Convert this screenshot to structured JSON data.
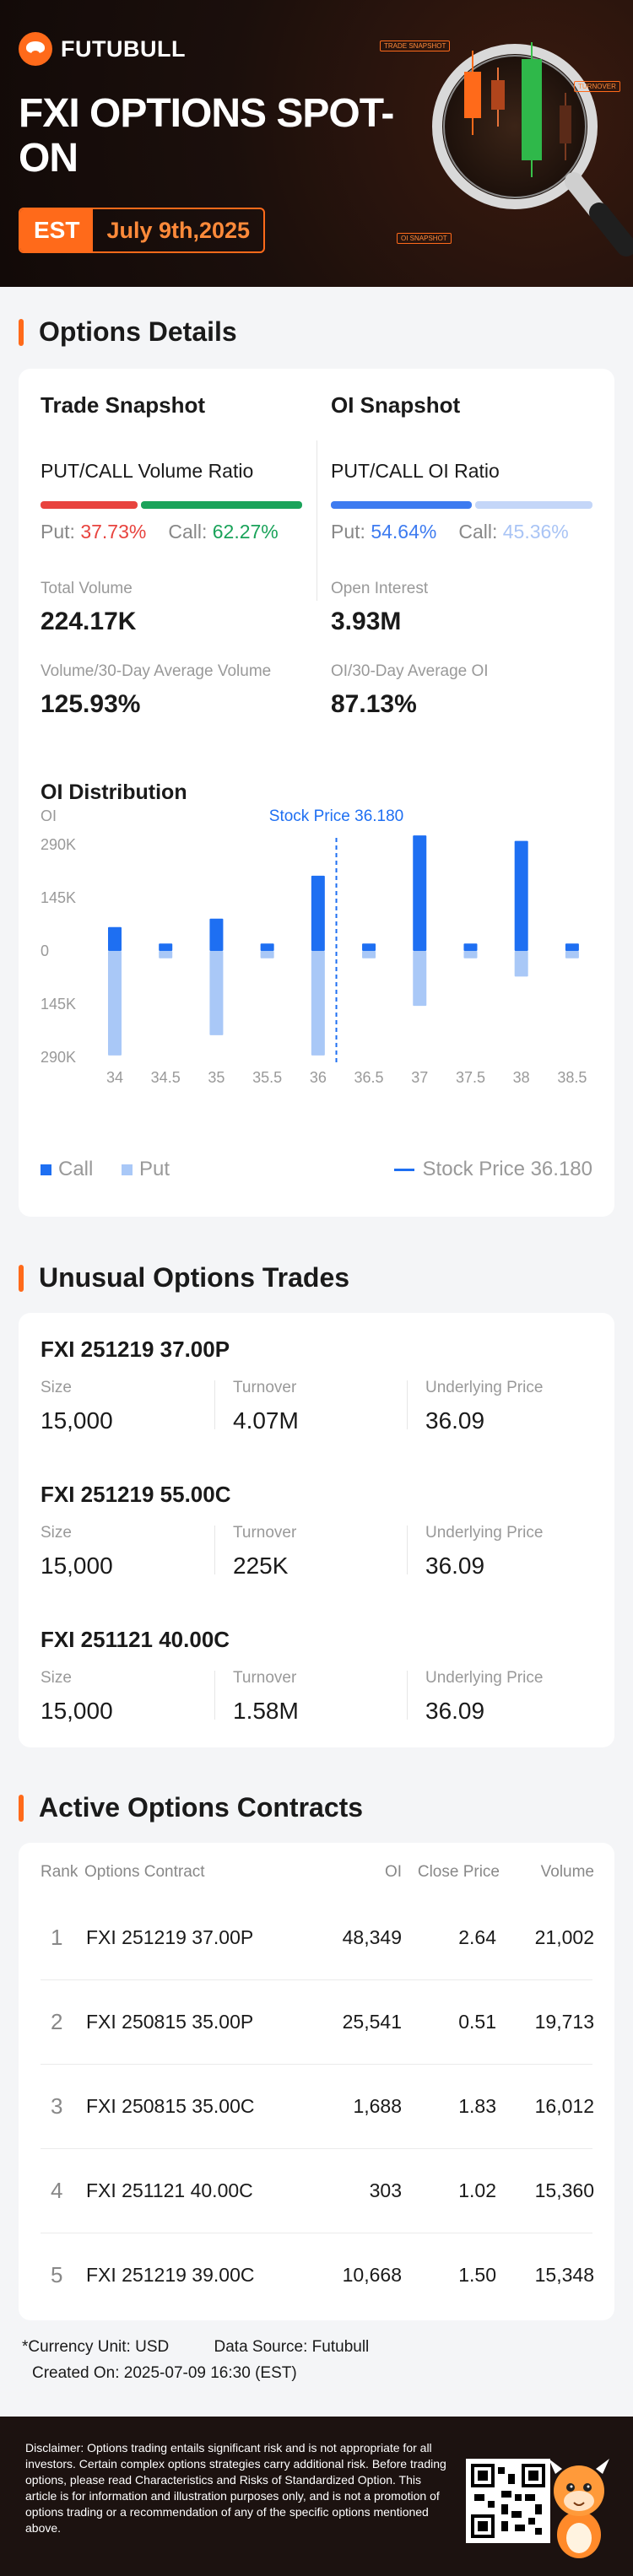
{
  "brand": {
    "name": "FUTUBULL"
  },
  "hero": {
    "title": "FXI OPTIONS SPOT-ON",
    "tz": "EST",
    "date": "July 9th,2025",
    "tags": [
      "TRADE SNAPSHOT",
      "TURNOVER",
      "OI SNAPSHOT"
    ]
  },
  "options_details": {
    "heading": "Options Details",
    "trade": {
      "title": "Trade Snapshot",
      "ratio_label": "PUT/CALL Volume Ratio",
      "put_label": "Put:",
      "put_value": "37.73%",
      "call_label": "Call:",
      "call_value": "62.27%",
      "put_pct": 37.73,
      "call_pct": 62.27,
      "m1_label": "Total Volume",
      "m1_value": "224.17K",
      "m2_label": "Volume/30-Day Average Volume",
      "m2_value": "125.93%"
    },
    "oi": {
      "title": "OI Snapshot",
      "ratio_label": "PUT/CALL OI Ratio",
      "put_label": "Put:",
      "put_value": "54.64%",
      "call_label": "Call:",
      "call_value": "45.36%",
      "put_pct": 54.64,
      "call_pct": 45.36,
      "m1_label": "Open Interest",
      "m1_value": "3.93M",
      "m2_label": "OI/30-Day Average OI",
      "m2_value": "87.13%"
    },
    "colors": {
      "put_red": "#e8433e",
      "call_green": "#1aa35a",
      "put_blue": "#3d7bf0",
      "call_lightblue": "#a9c4f5"
    }
  },
  "chart_data": {
    "type": "bar",
    "title": "OI Distribution",
    "ylabel": "OI",
    "stock_price_label": "Stock Price 36.180",
    "stock_price": 36.18,
    "categories": [
      "34",
      "34.5",
      "35",
      "35.5",
      "36",
      "36.5",
      "37",
      "37.5",
      "38",
      "38.5"
    ],
    "yticks": [
      "290K",
      "145K",
      "0",
      "145K",
      "290K"
    ],
    "ylim": [
      -290000,
      290000
    ],
    "series": [
      {
        "name": "Call",
        "color": "#1e6ff2",
        "values": [
          65000,
          20000,
          88000,
          20000,
          205000,
          20000,
          315000,
          20000,
          300000,
          20000
        ]
      },
      {
        "name": "Put",
        "color": "#a9c8f7",
        "values": [
          -285000,
          -20000,
          -230000,
          -20000,
          -285000,
          -20000,
          -150000,
          -20000,
          -70000,
          -20000
        ]
      }
    ],
    "legend": [
      "Call",
      "Put",
      "Stock Price 36.180"
    ]
  },
  "unusual": {
    "heading": "Unusual Options Trades",
    "col_size": "Size",
    "col_turnover": "Turnover",
    "col_underlying": "Underlying Price",
    "trades": [
      {
        "name": "FXI 251219 37.00P",
        "size": "15,000",
        "turnover": "4.07M",
        "underlying": "36.09"
      },
      {
        "name": "FXI 251219 55.00C",
        "size": "15,000",
        "turnover": "225K",
        "underlying": "36.09"
      },
      {
        "name": "FXI 251121 40.00C",
        "size": "15,000",
        "turnover": "1.58M",
        "underlying": "36.09"
      }
    ]
  },
  "active": {
    "heading": "Active Options Contracts",
    "headers": {
      "rank": "Rank",
      "contract": "Options Contract",
      "oi": "OI",
      "close": "Close Price",
      "volume": "Volume"
    },
    "rows": [
      {
        "rank": "1",
        "contract": "FXI 251219 37.00P",
        "oi": "48,349",
        "close": "2.64",
        "volume": "21,002"
      },
      {
        "rank": "2",
        "contract": "FXI 250815 35.00P",
        "oi": "25,541",
        "close": "0.51",
        "volume": "19,713"
      },
      {
        "rank": "3",
        "contract": "FXI 250815 35.00C",
        "oi": "1,688",
        "close": "1.83",
        "volume": "16,012"
      },
      {
        "rank": "4",
        "contract": "FXI 251121 40.00C",
        "oi": "303",
        "close": "1.02",
        "volume": "15,360"
      },
      {
        "rank": "5",
        "contract": "FXI 251219 39.00C",
        "oi": "10,668",
        "close": "1.50",
        "volume": "15,348"
      }
    ]
  },
  "footer": {
    "currency": "*Currency Unit: USD",
    "source": "Data Source: Futubull",
    "created": "Created On: 2025-07-09 16:30 (EST)",
    "disclaimer": "Disclaimer: Options trading entails significant risk and is not appropriate for all investors. Certain complex options strategies carry additional risk. Before trading options, please read Characteristics and Risks of Standardized Option. This article is for information and illustration purposes only, and is not a promotion of options trading or a recommendation of any of the specific options mentioned above."
  }
}
